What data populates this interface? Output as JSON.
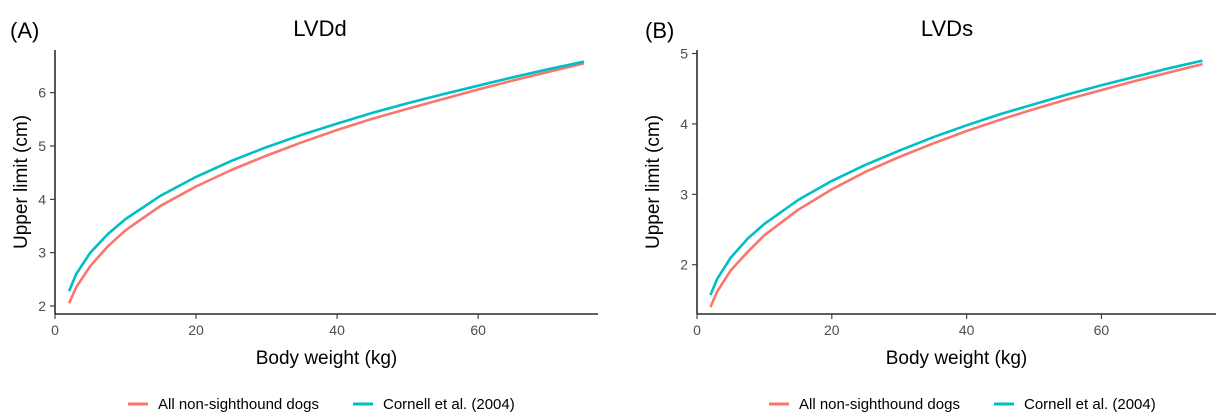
{
  "chart_data": [
    {
      "type": "line",
      "panel_label": "(A)",
      "title": "LVDd",
      "xlabel": "Body weight (kg)",
      "ylabel": "Upper limit (cm)",
      "xlim": [
        0,
        77
      ],
      "ylim": [
        1.85,
        6.8
      ],
      "x_ticks": [
        0,
        20,
        40,
        60
      ],
      "y_ticks": [
        2,
        3,
        4,
        5,
        6
      ],
      "grid": false,
      "series": [
        {
          "name": "All non-sighthound dogs",
          "color": "#F8766D",
          "x": [
            2,
            3,
            5,
            7.5,
            10,
            15,
            20,
            25,
            30,
            35,
            40,
            45,
            50,
            55,
            60,
            65,
            70,
            75
          ],
          "y": [
            2.05,
            2.35,
            2.75,
            3.12,
            3.42,
            3.88,
            4.24,
            4.55,
            4.82,
            5.07,
            5.3,
            5.51,
            5.7,
            5.88,
            6.06,
            6.23,
            6.39,
            6.55
          ]
        },
        {
          "name": "Cornell et al. (2004)",
          "color": "#00BFC4",
          "x": [
            2,
            3,
            5,
            7.5,
            10,
            15,
            20,
            25,
            30,
            35,
            40,
            45,
            50,
            55,
            60,
            65,
            70,
            75
          ],
          "y": [
            2.28,
            2.6,
            3.0,
            3.35,
            3.63,
            4.07,
            4.42,
            4.72,
            4.98,
            5.21,
            5.42,
            5.62,
            5.8,
            5.97,
            6.13,
            6.29,
            6.44,
            6.58
          ]
        }
      ]
    },
    {
      "type": "line",
      "panel_label": "(B)",
      "title": "LVDs",
      "xlabel": "Body weight (kg)",
      "ylabel": "Upper limit (cm)",
      "xlim": [
        0,
        77
      ],
      "ylim": [
        1.3,
        5.05
      ],
      "x_ticks": [
        0,
        20,
        40,
        60
      ],
      "y_ticks": [
        2,
        3,
        4,
        5
      ],
      "grid": false,
      "series": [
        {
          "name": "All non-sighthound dogs",
          "color": "#F8766D",
          "x": [
            2,
            3,
            5,
            7.5,
            10,
            15,
            20,
            25,
            30,
            35,
            40,
            45,
            50,
            55,
            60,
            65,
            70,
            75
          ],
          "y": [
            1.4,
            1.62,
            1.92,
            2.18,
            2.42,
            2.78,
            3.07,
            3.32,
            3.53,
            3.72,
            3.9,
            4.06,
            4.21,
            4.35,
            4.48,
            4.61,
            4.73,
            4.85
          ]
        },
        {
          "name": "Cornell et al. (2004)",
          "color": "#00BFC4",
          "x": [
            2,
            3,
            5,
            7.5,
            10,
            15,
            20,
            25,
            30,
            35,
            40,
            45,
            50,
            55,
            60,
            65,
            70,
            75
          ],
          "y": [
            1.57,
            1.8,
            2.1,
            2.37,
            2.58,
            2.92,
            3.19,
            3.42,
            3.62,
            3.81,
            3.98,
            4.14,
            4.28,
            4.42,
            4.55,
            4.67,
            4.79,
            4.9
          ]
        }
      ]
    }
  ]
}
